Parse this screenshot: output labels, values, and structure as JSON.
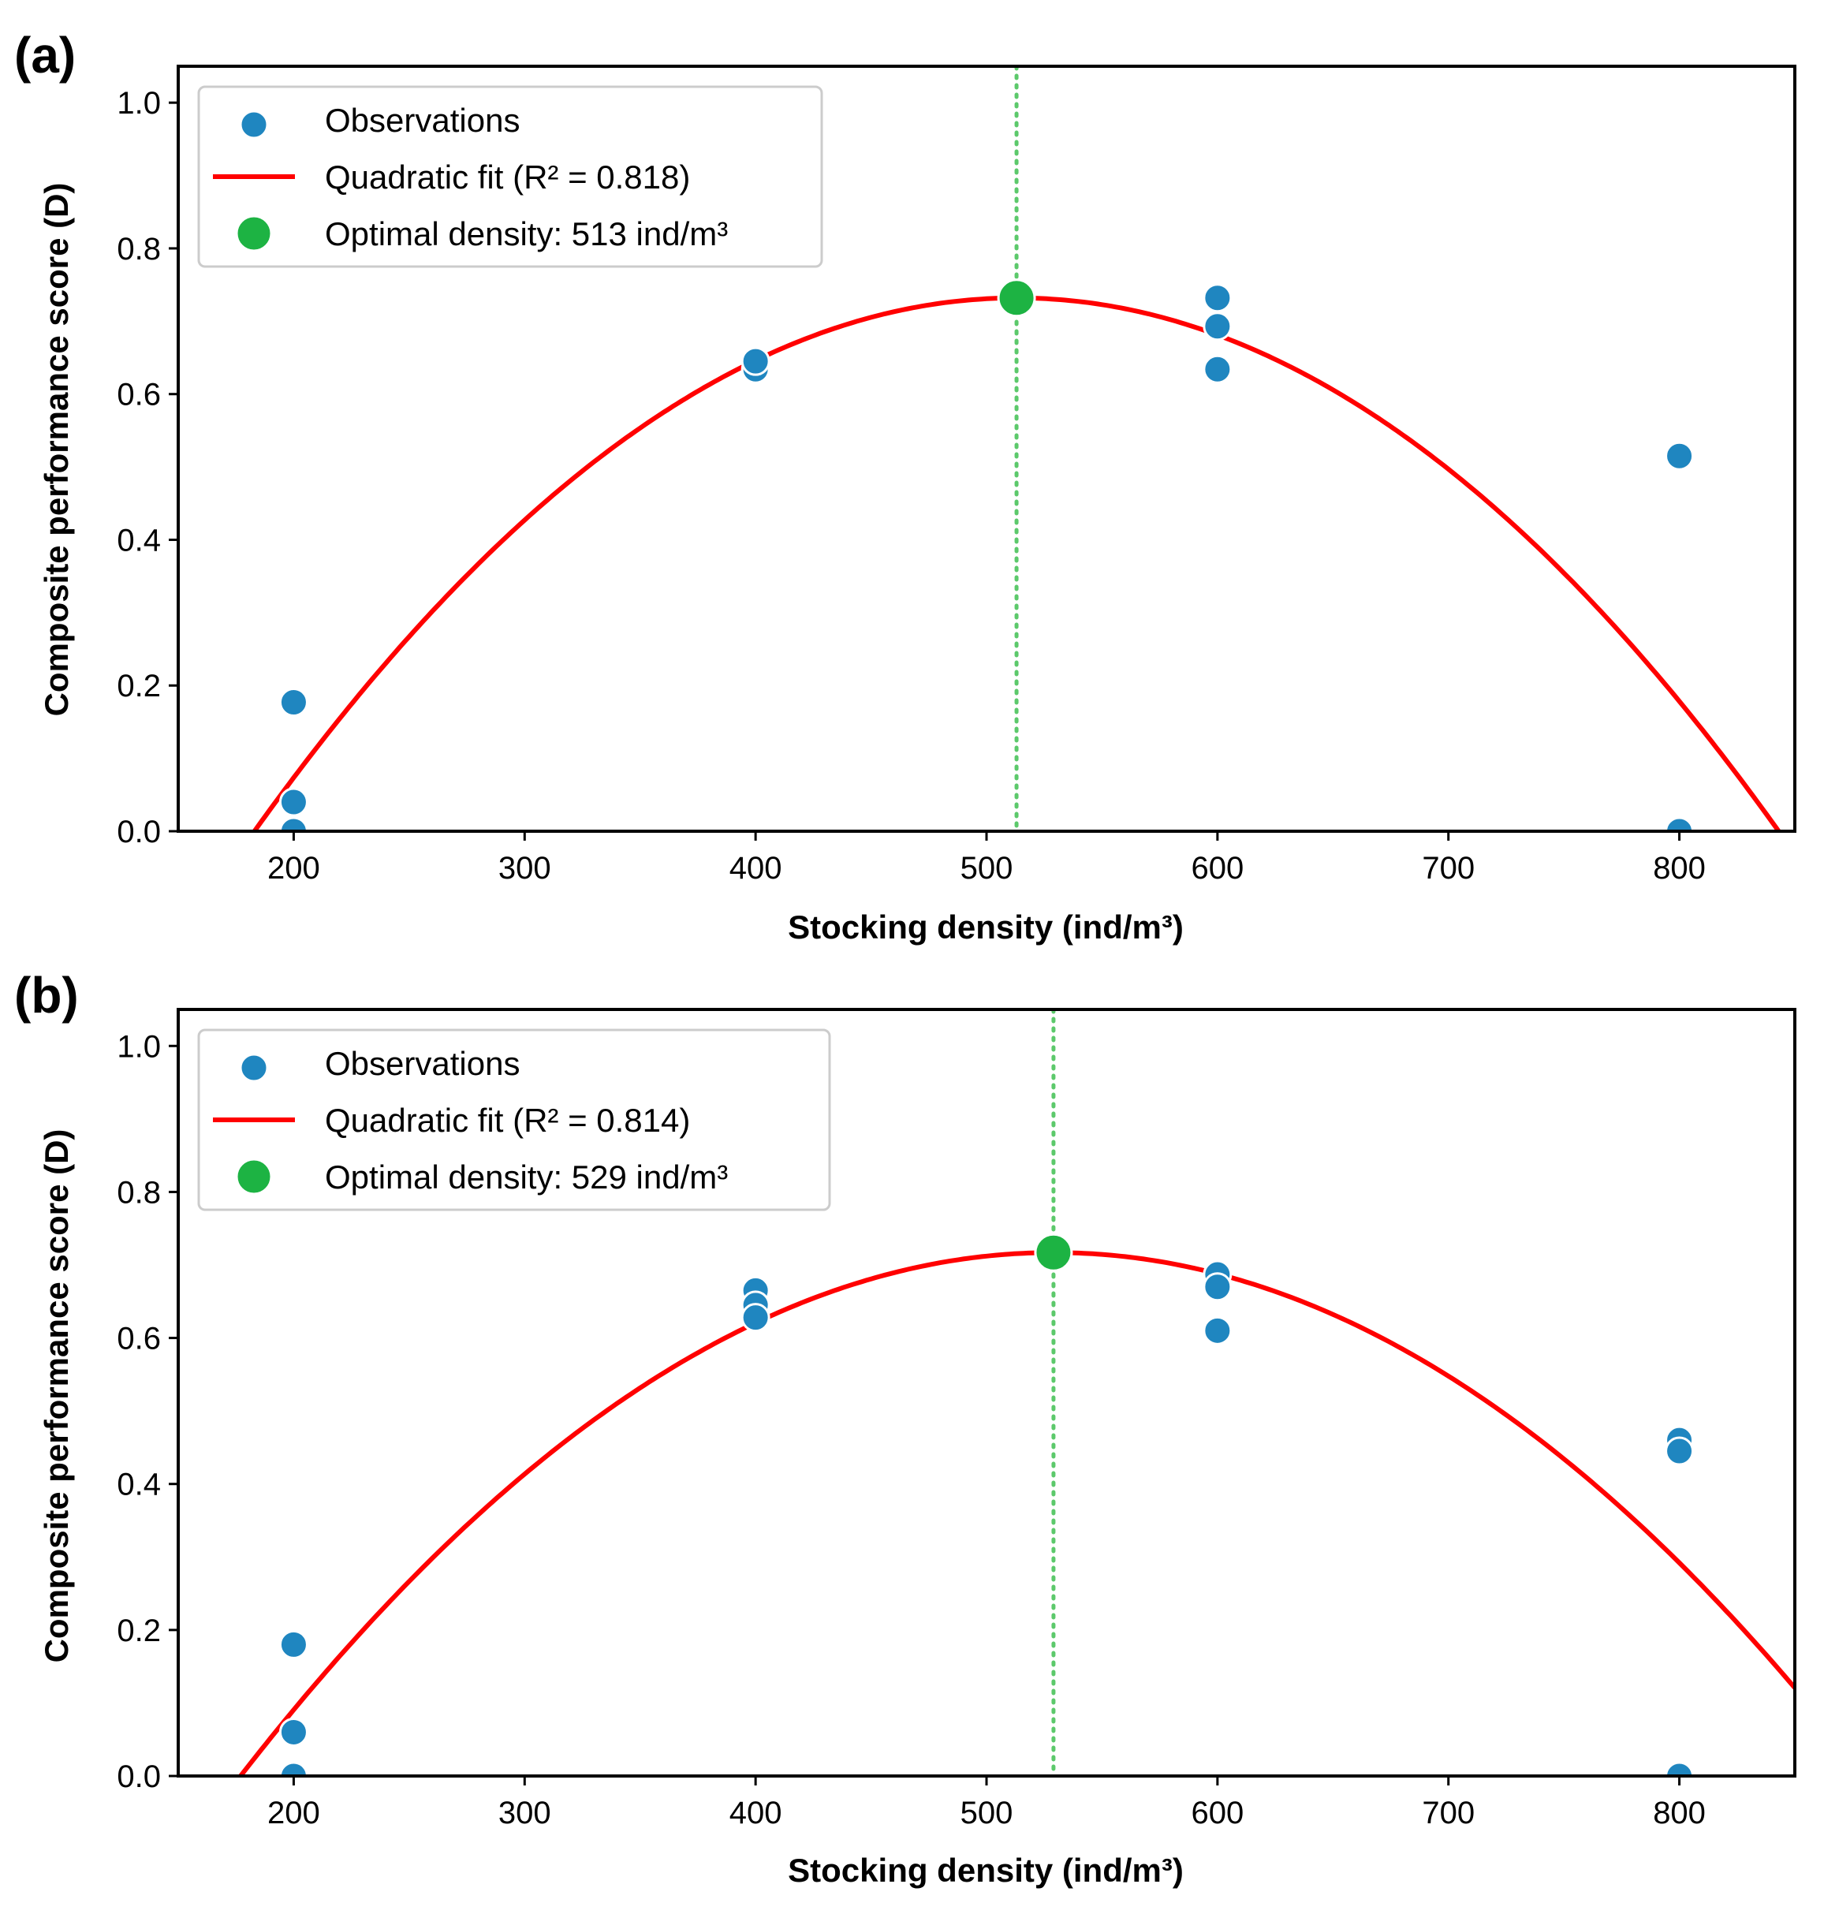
{
  "colors": {
    "observations": "#1f86c0",
    "fit": "#ff0000",
    "optimal": "#1db343",
    "guide": "#5cc96b",
    "frame": "#000000",
    "legend_border": "#cccccc"
  },
  "chart_data": [
    {
      "panel_label": "(a)",
      "type": "scatter",
      "xlabel": "Stocking density (ind/m³)",
      "ylabel": "Composite performance score (D)",
      "xlim": [
        150,
        850
      ],
      "ylim": [
        0,
        1.05
      ],
      "xticks": [
        200,
        300,
        400,
        500,
        600,
        700,
        800
      ],
      "xtick_labels": [
        "200",
        "300",
        "400",
        "500",
        "600",
        "700",
        "800"
      ],
      "yticks": [
        0,
        0.2,
        0.4,
        0.6,
        0.8,
        1.0
      ],
      "ytick_labels": [
        "0.0",
        "0.2",
        "0.4",
        "0.6",
        "0.8",
        "1.0"
      ],
      "legend": {
        "position": "top-left",
        "observations_label": "Observations",
        "fit_label": "Quadratic fit (R² = 0.818)",
        "optimal_label": "Optimal density: 513 ind/m³"
      },
      "observations": {
        "x": [
          200,
          200,
          200,
          400,
          400,
          600,
          600,
          600,
          800,
          800
        ],
        "y": [
          0.177,
          0.04,
          0.0,
          0.634,
          0.645,
          0.732,
          0.693,
          0.634,
          0.515,
          0.0
        ]
      },
      "fit": {
        "vertex_x": 513,
        "vertex_y": 0.732,
        "zero_x": 183
      },
      "optimal": {
        "x": 513,
        "y": 0.732
      }
    },
    {
      "panel_label": "(b)",
      "type": "scatter",
      "xlabel": "Stocking density (ind/m³)",
      "ylabel": "Composite performance score (D)",
      "xlim": [
        150,
        850
      ],
      "ylim": [
        0,
        1.05
      ],
      "xticks": [
        200,
        300,
        400,
        500,
        600,
        700,
        800
      ],
      "xtick_labels": [
        "200",
        "300",
        "400",
        "500",
        "600",
        "700",
        "800"
      ],
      "yticks": [
        0,
        0.2,
        0.4,
        0.6,
        0.8,
        1.0
      ],
      "ytick_labels": [
        "0.0",
        "0.2",
        "0.4",
        "0.6",
        "0.8",
        "1.0"
      ],
      "legend": {
        "position": "top-left",
        "observations_label": "Observations",
        "fit_label": "Quadratic fit (R² = 0.814)",
        "optimal_label": "Optimal density: 529 ind/m³"
      },
      "observations": {
        "x": [
          200,
          200,
          200,
          400,
          400,
          400,
          600,
          600,
          600,
          800,
          800,
          800
        ],
        "y": [
          0.18,
          0.06,
          0.0,
          0.665,
          0.645,
          0.628,
          0.687,
          0.67,
          0.61,
          0.46,
          0.445,
          0.0
        ]
      },
      "fit": {
        "vertex_x": 529,
        "vertex_y": 0.717,
        "zero_x": 177
      },
      "optimal": {
        "x": 529,
        "y": 0.717
      }
    }
  ]
}
